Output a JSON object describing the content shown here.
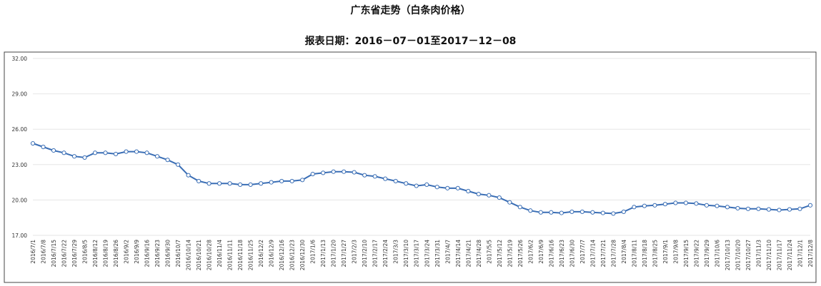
{
  "chart_data": {
    "type": "line",
    "title": "广东省走势（白条肉价格）",
    "subtitle": "报表日期：2016－07－01至2017－12－08",
    "xlabel": "",
    "ylabel": "",
    "ylim": [
      17,
      32
    ],
    "yticks": [
      "32.00",
      "29.00",
      "26.00",
      "23.00",
      "20.00",
      "17.00"
    ],
    "grid": true,
    "legend": "none",
    "line_color": "#3a6eb5",
    "categories": [
      "2016/7/1",
      "2016/7/8",
      "2016/7/15",
      "2016/7/22",
      "2016/7/29",
      "2016/8/5",
      "2016/8/12",
      "2016/8/19",
      "2016/8/26",
      "2016/9/2",
      "2016/9/9",
      "2016/9/16",
      "2016/9/23",
      "2016/9/30",
      "2016/10/7",
      "2016/10/14",
      "2016/10/21",
      "2016/10/28",
      "2016/11/4",
      "2016/11/11",
      "2016/11/18",
      "2016/11/25",
      "2016/12/2",
      "2016/12/9",
      "2016/12/16",
      "2016/12/23",
      "2016/12/30",
      "2017/1/6",
      "2017/1/13",
      "2017/1/20",
      "2017/1/27",
      "2017/2/3",
      "2017/2/10",
      "2017/2/17",
      "2017/2/24",
      "2017/3/3",
      "2017/3/10",
      "2017/3/17",
      "2017/3/24",
      "2017/3/31",
      "2017/4/7",
      "2017/4/14",
      "2017/4/21",
      "2017/4/28",
      "2017/5/5",
      "2017/5/12",
      "2017/5/19",
      "2017/5/26",
      "2017/6/2",
      "2017/6/9",
      "2017/6/16",
      "2017/6/23",
      "2017/6/30",
      "2017/7/7",
      "2017/7/14",
      "2017/7/21",
      "2017/7/28",
      "2017/8/4",
      "2017/8/11",
      "2017/8/18",
      "2017/8/25",
      "2017/9/1",
      "2017/9/8",
      "2017/9/15",
      "2017/9/22",
      "2017/9/29",
      "2017/10/6",
      "2017/10/13",
      "2017/10/20",
      "2017/10/27",
      "2017/11/3",
      "2017/11/10",
      "2017/11/17",
      "2017/11/24",
      "2017/12/1",
      "2017/12/8"
    ],
    "series": [
      {
        "values": [
          24.8,
          24.5,
          24.2,
          24.0,
          23.7,
          23.6,
          24.0,
          24.0,
          23.9,
          24.1,
          24.1,
          24.0,
          23.7,
          23.4,
          23.0,
          22.1,
          21.6,
          21.4,
          21.4,
          21.4,
          21.3,
          21.3,
          21.4,
          21.5,
          21.6,
          21.6,
          21.7,
          22.2,
          22.3,
          22.4,
          22.4,
          22.35,
          22.1,
          22.0,
          21.8,
          21.6,
          21.4,
          21.2,
          21.3,
          21.1,
          21.0,
          21.0,
          20.75,
          20.5,
          20.4,
          20.2,
          19.8,
          19.4,
          19.1,
          18.95,
          18.95,
          18.9,
          19.0,
          19.0,
          18.95,
          18.9,
          18.85,
          19.0,
          19.4,
          19.5,
          19.55,
          19.65,
          19.75,
          19.75,
          19.7,
          19.55,
          19.5,
          19.4,
          19.3,
          19.25,
          19.25,
          19.2,
          19.15,
          19.2,
          19.25,
          19.55
        ]
      }
    ]
  }
}
